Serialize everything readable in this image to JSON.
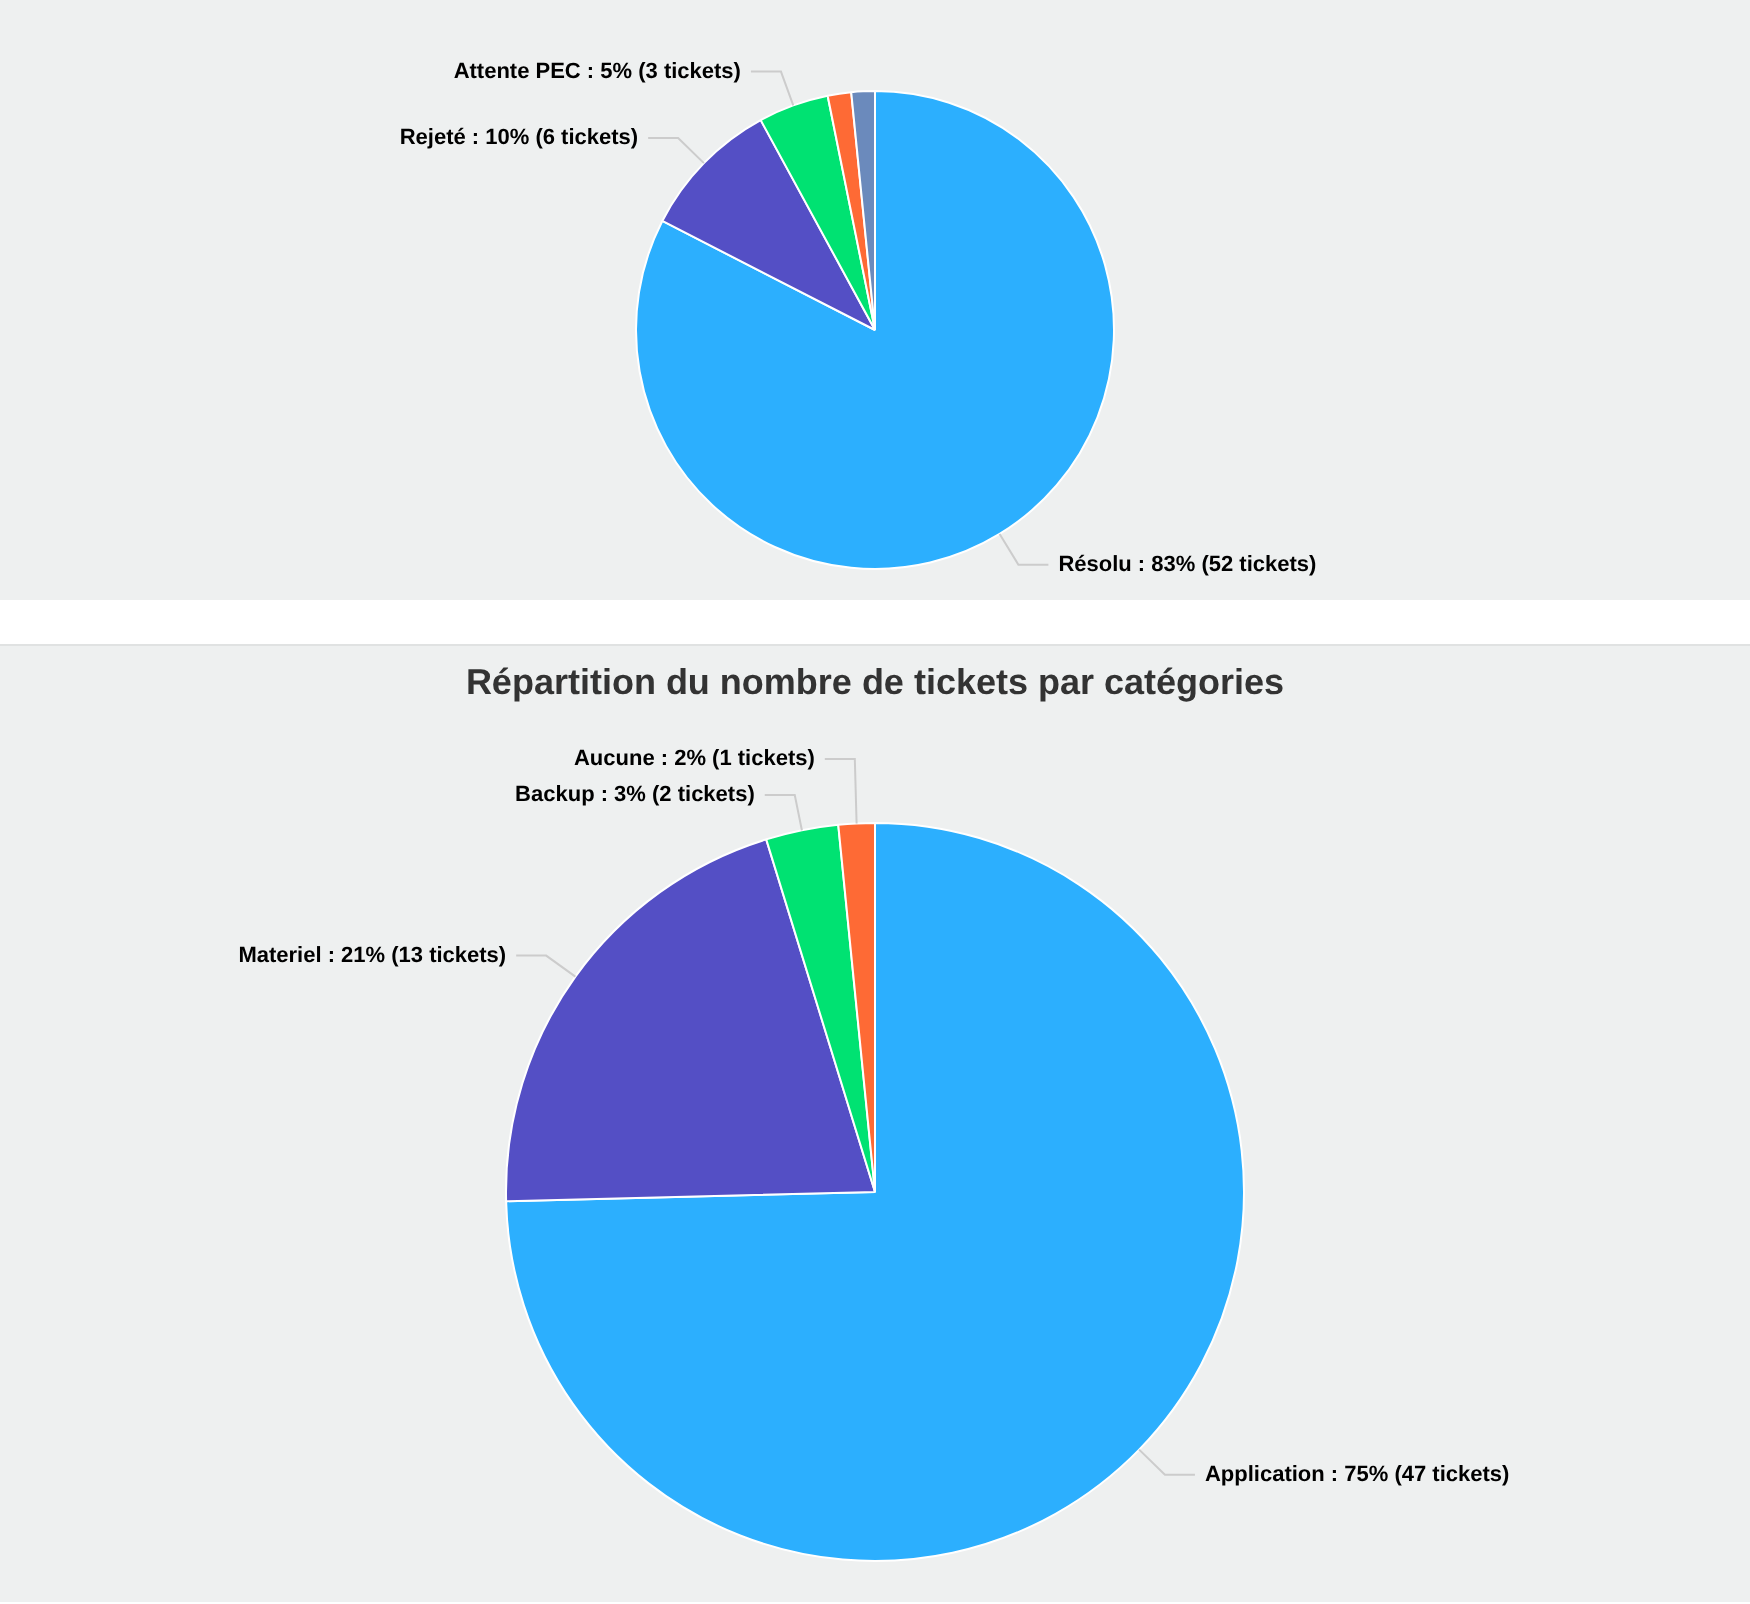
{
  "chart_data": [
    {
      "type": "pie",
      "categories": [
        "Résolu",
        "Rejeté",
        "Attente PEC",
        null,
        null
      ],
      "values": [
        52,
        6,
        3,
        1,
        1
      ],
      "colors": [
        "#2caffe",
        "#544fc5",
        "#00e272",
        "#fe6a35",
        "#6b8abc"
      ],
      "value_labels": [
        "83% (52 tickets)",
        "10% (6 tickets)",
        "5% (3 tickets)",
        null,
        null
      ]
    },
    {
      "type": "pie",
      "title": "Répartition du nombre de tickets par catégories",
      "categories": [
        "Application",
        "Materiel",
        "Backup",
        "Aucune"
      ],
      "values": [
        47,
        13,
        2,
        1
      ],
      "colors": [
        "#2caffe",
        "#544fc5",
        "#00e272",
        "#fe6a35"
      ],
      "value_labels": [
        "75% (47 tickets)",
        "21% (13 tickets)",
        "3% (2 tickets)",
        "2% (1 tickets)"
      ]
    }
  ]
}
